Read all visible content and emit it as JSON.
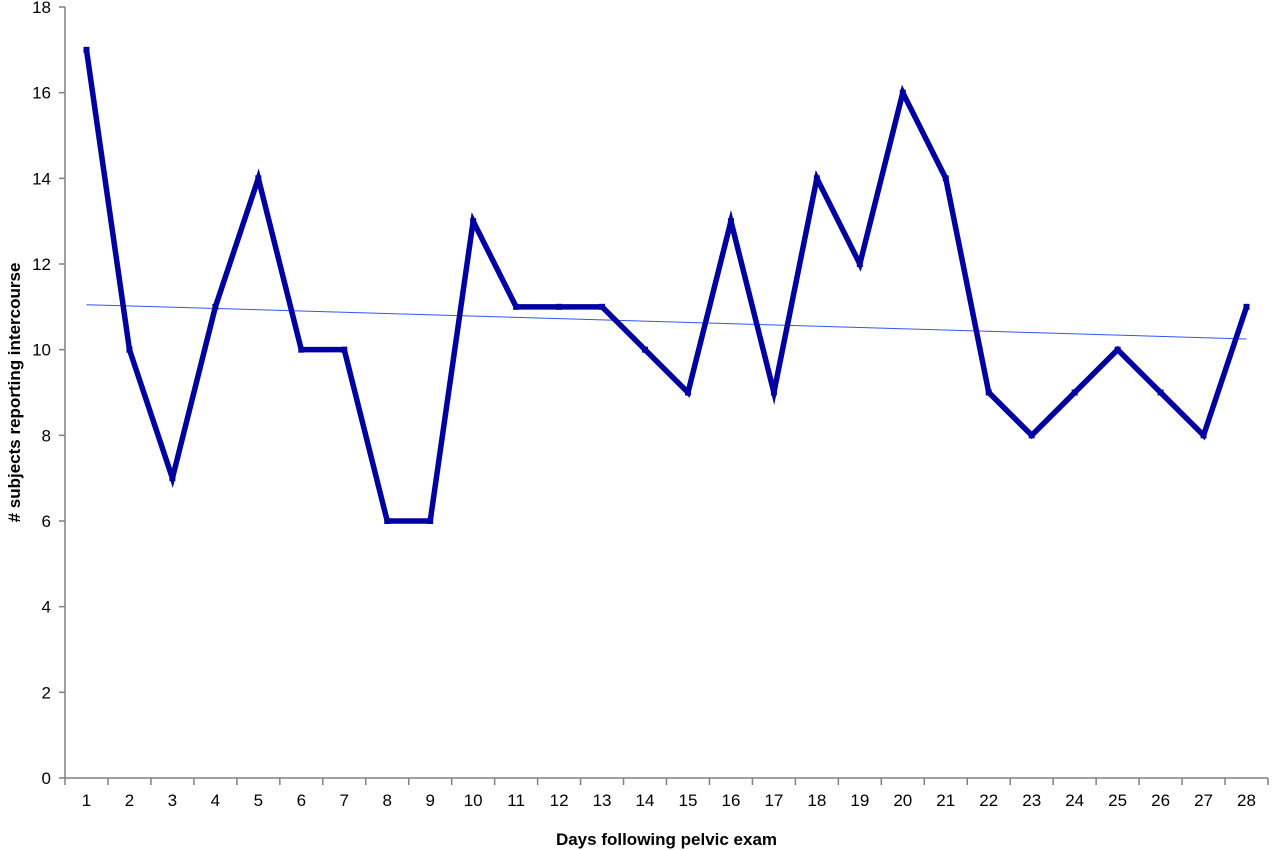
{
  "chart_data": {
    "type": "line",
    "xlabel": "Days following pelvic exam",
    "ylabel": "# subjects reporting intercourse",
    "x": [
      1,
      2,
      3,
      4,
      5,
      6,
      7,
      8,
      9,
      10,
      11,
      12,
      13,
      14,
      15,
      16,
      17,
      18,
      19,
      20,
      21,
      22,
      23,
      24,
      25,
      26,
      27,
      28
    ],
    "series": [
      {
        "values": [
          17,
          10,
          7,
          11,
          14,
          10,
          10,
          6,
          6,
          13,
          11,
          11,
          11,
          10,
          9,
          13,
          9,
          14,
          12,
          16,
          14,
          9,
          8,
          9,
          10,
          9,
          8,
          11
        ],
        "color": "#0000A0"
      }
    ],
    "trendline": {
      "type": "linear",
      "start": 11.05,
      "end": 10.25,
      "color": "#3355EE"
    },
    "ylim": [
      0,
      18
    ],
    "yticks": [
      0,
      2,
      4,
      6,
      8,
      10,
      12,
      14,
      16,
      18
    ],
    "grid": false,
    "legend": "none"
  }
}
